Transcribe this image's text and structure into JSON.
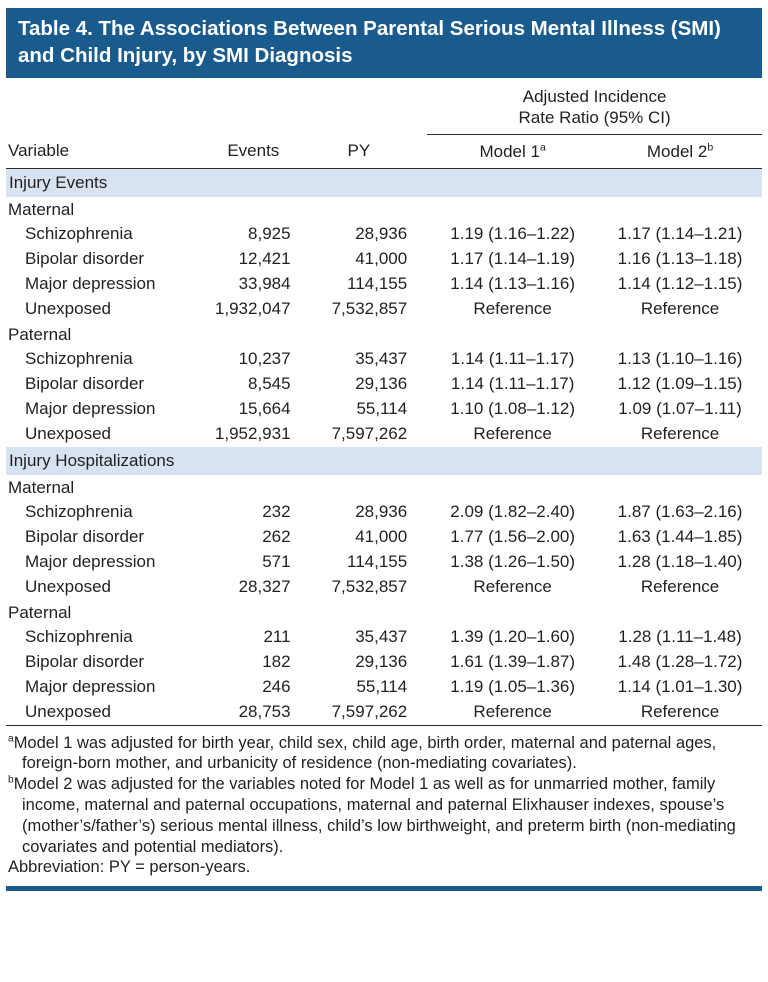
{
  "colors": {
    "title_bg": "#1a5b8d",
    "band_bg": "#d7e3f1",
    "rule": "#2b2b2b",
    "bottom_bar": "#1a5b8d",
    "text": "#231f20",
    "title_text": "#ffffff"
  },
  "title": "Table 4. The Associations Between Parental Serious Mental Illness (SMI) and Child Injury, by SMI Diagnosis",
  "header": {
    "span_label_line1": "Adjusted Incidence",
    "span_label_line2": "Rate Ratio (95% CI)",
    "col_variable": "Variable",
    "col_events": "Events",
    "col_py": "PY",
    "model1": {
      "label": "Model 1",
      "sup": "a"
    },
    "model2": {
      "label": "Model 2",
      "sup": "b"
    }
  },
  "sections": [
    {
      "label": "Injury Events",
      "groups": [
        {
          "label": "Maternal",
          "rows": [
            {
              "variable": "Schizophrenia",
              "events": "8,925",
              "py": "28,936",
              "model1": "1.19 (1.16–1.22)",
              "model2": "1.17 (1.14–1.21)"
            },
            {
              "variable": "Bipolar disorder",
              "events": "12,421",
              "py": "41,000",
              "model1": "1.17 (1.14–1.19)",
              "model2": "1.16 (1.13–1.18)"
            },
            {
              "variable": "Major depression",
              "events": "33,984",
              "py": "114,155",
              "model1": "1.14 (1.13–1.16)",
              "model2": "1.14 (1.12–1.15)"
            },
            {
              "variable": "Unexposed",
              "events": "1,932,047",
              "py": "7,532,857",
              "model1": "Reference",
              "model2": "Reference"
            }
          ]
        },
        {
          "label": "Paternal",
          "rows": [
            {
              "variable": "Schizophrenia",
              "events": "10,237",
              "py": "35,437",
              "model1": "1.14 (1.11–1.17)",
              "model2": "1.13 (1.10–1.16)"
            },
            {
              "variable": "Bipolar disorder",
              "events": "8,545",
              "py": "29,136",
              "model1": "1.14 (1.11–1.17)",
              "model2": "1.12 (1.09–1.15)"
            },
            {
              "variable": "Major depression",
              "events": "15,664",
              "py": "55,114",
              "model1": "1.10 (1.08–1.12)",
              "model2": "1.09 (1.07–1.11)"
            },
            {
              "variable": "Unexposed",
              "events": "1,952,931",
              "py": "7,597,262",
              "model1": "Reference",
              "model2": "Reference"
            }
          ]
        }
      ]
    },
    {
      "label": "Injury Hospitalizations",
      "groups": [
        {
          "label": "Maternal",
          "rows": [
            {
              "variable": "Schizophrenia",
              "events": "232",
              "py": "28,936",
              "model1": "2.09 (1.82–2.40)",
              "model2": "1.87 (1.63–2.16)"
            },
            {
              "variable": "Bipolar disorder",
              "events": "262",
              "py": "41,000",
              "model1": "1.77 (1.56–2.00)",
              "model2": "1.63 (1.44–1.85)"
            },
            {
              "variable": "Major depression",
              "events": "571",
              "py": "114,155",
              "model1": "1.38 (1.26–1.50)",
              "model2": "1.28 (1.18–1.40)"
            },
            {
              "variable": "Unexposed",
              "events": "28,327",
              "py": "7,532,857",
              "model1": "Reference",
              "model2": "Reference"
            }
          ]
        },
        {
          "label": "Paternal",
          "rows": [
            {
              "variable": "Schizophrenia",
              "events": "211",
              "py": "35,437",
              "model1": "1.39 (1.20–1.60)",
              "model2": "1.28 (1.11–1.48)"
            },
            {
              "variable": "Bipolar disorder",
              "events": "182",
              "py": "29,136",
              "model1": "1.61 (1.39–1.87)",
              "model2": "1.48 (1.28–1.72)"
            },
            {
              "variable": "Major depression",
              "events": "246",
              "py": "55,114",
              "model1": "1.19 (1.05–1.36)",
              "model2": "1.14 (1.01–1.30)"
            },
            {
              "variable": "Unexposed",
              "events": "28,753",
              "py": "7,597,262",
              "model1": "Reference",
              "model2": "Reference"
            }
          ]
        }
      ]
    }
  ],
  "footnotes": [
    {
      "sup": "a",
      "text": "Model 1 was adjusted for birth year, child sex, child age, birth order, maternal and paternal ages, foreign-born mother, and urbanicity of residence (non-mediating covariates)."
    },
    {
      "sup": "b",
      "text": "Model 2 was adjusted for the variables noted for Model 1 as well as for unmarried mother, family income, maternal and paternal occupations, maternal and paternal Elixhauser indexes, spouse’s (mother’s/father’s) serious mental illness, child’s low birthweight, and preterm birth (non-mediating covariates and potential mediators)."
    },
    {
      "sup": "",
      "text": "Abbreviation: PY = person-years."
    }
  ]
}
